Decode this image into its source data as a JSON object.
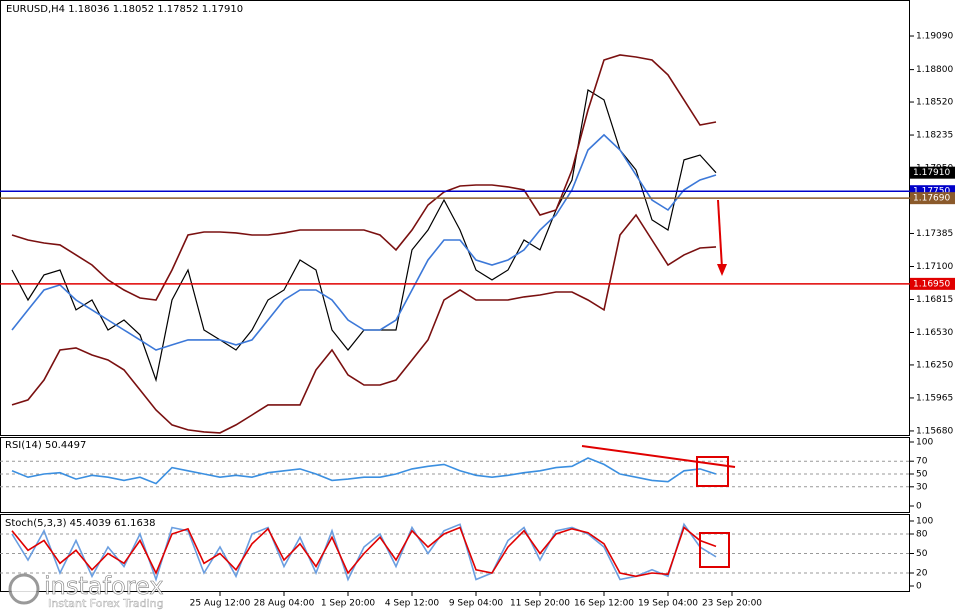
{
  "chart_data": [
    {
      "type": "line",
      "title": "EURUSD,H4  1.18036 1.18052 1.17852 1.17910",
      "categories": [
        null,
        null,
        null,
        null,
        null,
        null,
        null,
        null,
        null,
        null,
        null,
        null,
        null,
        "25 Aug 12:00",
        null,
        null,
        null,
        "28 Aug 04:00",
        null,
        null,
        null,
        "1 Sep 20:00",
        null,
        null,
        null,
        "4 Sep 12:00",
        null,
        null,
        null,
        "9 Sep 04:00",
        null,
        null,
        null,
        "11 Sep 20:00",
        null,
        null,
        null,
        "16 Sep 12:00",
        null,
        null,
        null,
        "19 Sep 04:00",
        null,
        null,
        null,
        "23 Sep 20:00"
      ],
      "ylim": [
        1.15645,
        1.19401
      ],
      "yticks": [
        {
          "value": 1.1909,
          "label": "1.19090"
        },
        {
          "value": 1.188,
          "label": "1.18800"
        },
        {
          "value": 1.1852,
          "label": "1.18520"
        },
        {
          "value": 1.18235,
          "label": "1.18235"
        },
        {
          "value": 1.1795,
          "label": "1.17950"
        },
        {
          "value": 1.1767,
          "label": "1.17670"
        },
        {
          "value": 1.17385,
          "label": "1.17385"
        },
        {
          "value": 1.171,
          "label": "1.17100"
        },
        {
          "value": 1.16815,
          "label": "1.16815"
        },
        {
          "value": 1.1653,
          "label": "1.16530"
        },
        {
          "value": 1.1625,
          "label": "1.16250"
        },
        {
          "value": 1.15965,
          "label": "1.15965"
        },
        {
          "value": 1.1568,
          "label": "1.15680"
        }
      ],
      "series": [
        {
          "color": "#000000",
          "values": [
            1.1707,
            1.16811,
            1.17027,
            1.1707,
            1.16725,
            1.16811,
            1.16552,
            1.16638,
            1.16509,
            1.1612,
            1.16811,
            1.1707,
            1.16552,
            1.16466,
            1.16379,
            1.16552,
            1.16811,
            1.16897,
            1.17156,
            1.1707,
            1.16552,
            1.16379,
            1.16552,
            1.16552,
            1.16552,
            1.17243,
            1.17415,
            1.17674,
            1.17415,
            1.1707,
            1.16984,
            1.1707,
            1.17329,
            1.17243,
            1.17588,
            1.17847,
            1.18624,
            1.18538,
            1.18106,
            1.17933,
            1.17502,
            1.17415,
            1.1802,
            1.18063,
            1.1791,
            null
          ]
        },
        {
          "color": "#7a1010",
          "values": [
            1.17372,
            1.17329,
            1.17303,
            1.17286,
            1.172,
            1.17113,
            1.16984,
            1.16897,
            1.16828,
            1.16811,
            1.1707,
            1.17372,
            1.17398,
            1.17398,
            1.1739,
            1.17372,
            1.17372,
            1.1739,
            1.17415,
            1.17415,
            1.17415,
            1.17415,
            1.17415,
            1.17372,
            1.17243,
            1.17415,
            1.17631,
            1.17743,
            1.17795,
            1.17804,
            1.17804,
            1.17787,
            1.17761,
            1.17545,
            1.17588,
            1.17933,
            1.18451,
            1.18883,
            1.18926,
            1.18909,
            1.18883,
            1.18754,
            1.18538,
            1.18322,
            1.18348,
            null
          ]
        },
        {
          "color": "#7a1010",
          "values": [
            1.15905,
            1.15948,
            1.1612,
            1.16379,
            1.16397,
            1.16336,
            1.16293,
            1.16207,
            1.16034,
            1.15861,
            1.15732,
            1.15689,
            1.15672,
            1.15663,
            1.15732,
            1.15818,
            1.15905,
            1.15905,
            1.15905,
            1.16207,
            1.16379,
            1.16164,
            1.16077,
            1.16077,
            1.1612,
            1.16293,
            1.16466,
            1.16811,
            1.16897,
            1.16811,
            1.16811,
            1.16811,
            1.16837,
            1.16854,
            1.1688,
            1.1688,
            1.16811,
            1.16725,
            1.17372,
            1.17545,
            1.17329,
            1.17113,
            1.172,
            1.1726,
            1.17269,
            null
          ]
        },
        {
          "color": "#3c78d8",
          "values": [
            1.16552,
            1.16725,
            1.16897,
            1.16941,
            1.16811,
            1.16725,
            1.16638,
            1.16552,
            1.16466,
            1.16379,
            1.16423,
            1.16466,
            1.16466,
            1.16466,
            1.16423,
            1.16466,
            1.16638,
            1.16811,
            1.16897,
            1.16897,
            1.16811,
            1.16638,
            1.16552,
            1.16552,
            1.16638,
            1.16897,
            1.17156,
            1.17329,
            1.17329,
            1.17156,
            1.17113,
            1.17156,
            1.17243,
            1.17415,
            1.17545,
            1.17761,
            1.18106,
            1.18236,
            1.18106,
            1.1789,
            1.17674,
            1.17588,
            1.17761,
            1.17847,
            1.1789,
            null
          ]
        }
      ],
      "levels": [
        {
          "value": 1.1775,
          "label": "1.17750",
          "color": "#0000c8"
        },
        {
          "value": 1.1769,
          "label": "1.17690",
          "color": "#8b5a2b"
        },
        {
          "value": 1.1695,
          "label": "1.16950",
          "color": "#e00000"
        }
      ],
      "last": {
        "value": 1.1791,
        "label": "1.17910"
      }
    },
    {
      "type": "line",
      "title": "RSI(14) 50.4497",
      "ylim": [
        0,
        100
      ],
      "yticks": [
        0,
        30,
        50,
        70,
        100
      ],
      "levels_dashed": [
        30,
        50,
        70
      ],
      "series": [
        {
          "color": "#3b8fe0",
          "values": [
            55,
            45,
            50,
            52,
            42,
            48,
            45,
            40,
            45,
            35,
            60,
            55,
            50,
            45,
            48,
            45,
            52,
            55,
            58,
            50,
            40,
            42,
            45,
            45,
            50,
            58,
            62,
            65,
            55,
            48,
            45,
            48,
            52,
            55,
            60,
            62,
            75,
            65,
            50,
            45,
            40,
            38,
            55,
            58,
            50,
            null
          ]
        }
      ]
    },
    {
      "type": "line",
      "title": "Stoch(5,3,3) 45.4039 61.1638",
      "ylim": [
        0,
        100
      ],
      "yticks": [
        0,
        20,
        50,
        80,
        100
      ],
      "levels_dashed": [
        20,
        50,
        80
      ],
      "series": [
        {
          "color": "#6a9ee0",
          "values": [
            80,
            40,
            85,
            20,
            70,
            15,
            60,
            30,
            80,
            10,
            90,
            85,
            20,
            60,
            15,
            80,
            90,
            30,
            75,
            20,
            85,
            10,
            60,
            80,
            30,
            90,
            50,
            85,
            95,
            10,
            20,
            70,
            90,
            40,
            85,
            90,
            80,
            60,
            10,
            15,
            25,
            15,
            95,
            60,
            45,
            null
          ]
        },
        {
          "color": "#e00000",
          "values": [
            85,
            55,
            70,
            35,
            55,
            25,
            50,
            35,
            70,
            20,
            80,
            88,
            35,
            50,
            25,
            65,
            88,
            40,
            65,
            30,
            75,
            20,
            50,
            75,
            40,
            85,
            60,
            80,
            90,
            25,
            20,
            60,
            85,
            50,
            80,
            88,
            82,
            65,
            20,
            15,
            20,
            18,
            90,
            70,
            61,
            null
          ]
        }
      ]
    }
  ],
  "watermark": {
    "brand": "instaforex",
    "tagline": "Instant Forex Trading"
  }
}
